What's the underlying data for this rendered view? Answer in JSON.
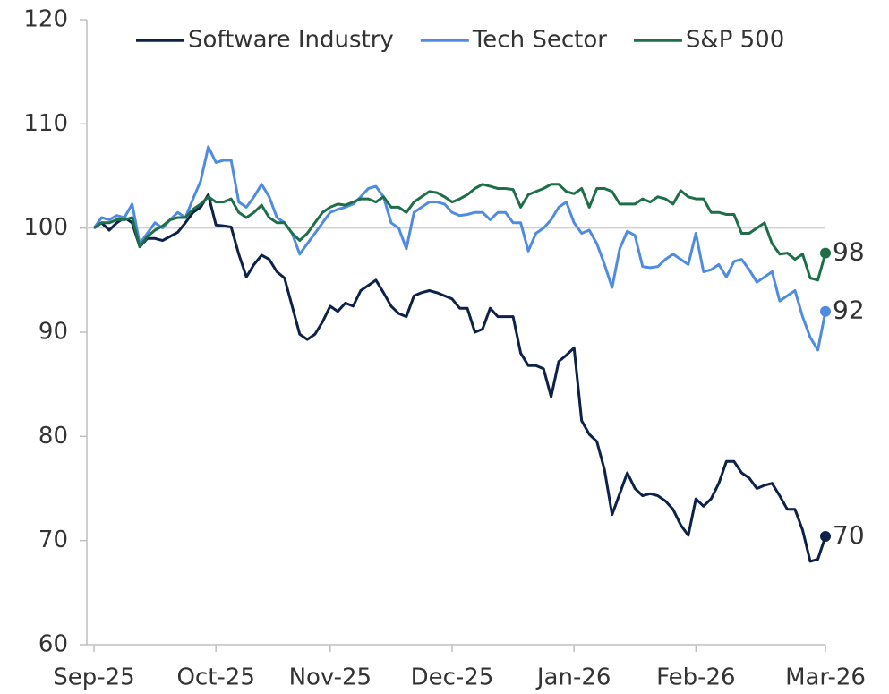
{
  "chart_data": {
    "type": "line",
    "categories": [
      "Sep-25",
      null,
      null,
      null,
      null,
      null,
      null,
      null,
      null,
      null,
      null,
      null,
      null,
      null,
      null,
      null,
      "Oct-25",
      null,
      null,
      null,
      null,
      null,
      null,
      null,
      null,
      null,
      null,
      null,
      null,
      null,
      null,
      "Nov-25",
      null,
      null,
      null,
      null,
      null,
      null,
      null,
      null,
      null,
      null,
      null,
      null,
      null,
      null,
      null,
      "Dec-25",
      null,
      null,
      null,
      null,
      null,
      null,
      null,
      null,
      null,
      null,
      null,
      null,
      null,
      null,
      null,
      "Jan-26",
      null,
      null,
      null,
      null,
      null,
      null,
      null,
      null,
      null,
      null,
      null,
      null,
      null,
      null,
      null,
      "Feb-26",
      null,
      null,
      null,
      null,
      null,
      null,
      null,
      null,
      null,
      null,
      null,
      null,
      null,
      null,
      null,
      null,
      "Mar-26"
    ],
    "series": [
      {
        "name": "Software Industry",
        "color": "#0d2149",
        "values": [
          100,
          100.5,
          99.8,
          100.5,
          101,
          100.5,
          98.2,
          99,
          99,
          98.8,
          99.2,
          99.6,
          100.5,
          101.5,
          102,
          103.2,
          100.3,
          100.2,
          100.1,
          97.5,
          95.3,
          96.5,
          97.4,
          97,
          95.8,
          95.2,
          92.5,
          89.8,
          89.3,
          89.8,
          91,
          92.5,
          92,
          92.8,
          92.5,
          94,
          94.5,
          95,
          93.8,
          92.5,
          91.8,
          91.5,
          93.5,
          93.8,
          94,
          93.8,
          93.5,
          93.2,
          92.3,
          92.3,
          90,
          90.3,
          92.3,
          91.5,
          91.5,
          91.5,
          88,
          86.8,
          86.8,
          86.5,
          83.8,
          87.2,
          87.8,
          88.5,
          81.5,
          80.2,
          79.5,
          76.8,
          72.5,
          74.5,
          76.5,
          75,
          74.3,
          74.5,
          74.3,
          73.8,
          73,
          71.5,
          70.5,
          74,
          73.3,
          74,
          75.5,
          77.6,
          77.6,
          76.5,
          76,
          75,
          75.3,
          75.5,
          74.3,
          73,
          73,
          71,
          68,
          68.2,
          70.4
        ],
        "value_labels": [
          null,
          null,
          null,
          null,
          null,
          null,
          null,
          null,
          null,
          null,
          null,
          null,
          null,
          null,
          null,
          null,
          null,
          null,
          null,
          null,
          null,
          null,
          null,
          null,
          null,
          null,
          null,
          null,
          null,
          null,
          null,
          null,
          null,
          null,
          null,
          null,
          null,
          null,
          null,
          null,
          null,
          null,
          null,
          null,
          null,
          null,
          null,
          null,
          null,
          null,
          null,
          null,
          null,
          null,
          null,
          null,
          null,
          null,
          null,
          null,
          null,
          null,
          null,
          null,
          null,
          null,
          null,
          null,
          null,
          null,
          null,
          null,
          null,
          null,
          null,
          null,
          null,
          null,
          null,
          null,
          null,
          null,
          null,
          null,
          null,
          null,
          null,
          null,
          null,
          null,
          null,
          null,
          null,
          null,
          null,
          null,
          "70"
        ]
      },
      {
        "name": "Tech Sector",
        "color": "#4f8be0",
        "values": [
          100,
          101,
          100.8,
          101.2,
          101,
          102.3,
          98.5,
          99.5,
          100.5,
          100,
          100.8,
          101.5,
          101,
          102.8,
          104.5,
          107.8,
          106.3,
          106.5,
          106.5,
          102.5,
          102,
          103,
          104.2,
          103,
          101,
          100.5,
          99.5,
          97.5,
          98.5,
          99.5,
          100.5,
          101.5,
          101.8,
          102,
          102.3,
          103,
          103.8,
          104,
          103,
          100.5,
          100,
          98,
          101.5,
          102,
          102.5,
          102.5,
          102.3,
          101.5,
          101.2,
          101.3,
          101.5,
          101.5,
          100.8,
          101.5,
          101.5,
          100.5,
          100.5,
          97.8,
          99.5,
          100,
          100.8,
          102,
          102.5,
          100.5,
          99.5,
          99.8,
          98.5,
          96.5,
          94.3,
          98,
          99.7,
          99.3,
          96.3,
          96.2,
          96.3,
          97,
          97.5,
          97,
          96.5,
          99.5,
          95.8,
          96,
          96.5,
          95.3,
          96.8,
          97,
          96,
          94.8,
          95.3,
          95.8,
          93,
          93.5,
          94,
          91.5,
          89.5,
          88.3,
          92
        ],
        "value_labels": [
          null,
          null,
          null,
          null,
          null,
          null,
          null,
          null,
          null,
          null,
          null,
          null,
          null,
          null,
          null,
          null,
          null,
          null,
          null,
          null,
          null,
          null,
          null,
          null,
          null,
          null,
          null,
          null,
          null,
          null,
          null,
          null,
          null,
          null,
          null,
          null,
          null,
          null,
          null,
          null,
          null,
          null,
          null,
          null,
          null,
          null,
          null,
          null,
          null,
          null,
          null,
          null,
          null,
          null,
          null,
          null,
          null,
          null,
          null,
          null,
          null,
          null,
          null,
          null,
          null,
          null,
          null,
          null,
          null,
          null,
          null,
          null,
          null,
          null,
          null,
          null,
          null,
          null,
          null,
          null,
          null,
          null,
          null,
          null,
          null,
          null,
          null,
          null,
          null,
          null,
          null,
          null,
          null,
          null,
          null,
          null,
          "92"
        ]
      },
      {
        "name": "S&P 500",
        "color": "#1e6e4a",
        "values": [
          100,
          100.5,
          100.5,
          100.8,
          100.8,
          101,
          98.2,
          99.2,
          99.8,
          100.2,
          100.8,
          101,
          101,
          101.8,
          102.3,
          103,
          102.5,
          102.5,
          102.8,
          101.5,
          101,
          101.5,
          102.2,
          101,
          100.5,
          100.5,
          99.5,
          98.8,
          99.5,
          100.5,
          101.5,
          102,
          102.3,
          102.2,
          102.5,
          102.8,
          102.8,
          102.5,
          103,
          102,
          102,
          101.5,
          102.5,
          103,
          103.5,
          103.4,
          103,
          102.5,
          102.8,
          103.2,
          103.8,
          104.2,
          104,
          103.8,
          103.8,
          103.7,
          102,
          103.2,
          103.5,
          103.8,
          104.2,
          104.2,
          103.5,
          103.3,
          103.8,
          102,
          103.8,
          103.8,
          103.5,
          102.3,
          102.3,
          102.3,
          102.8,
          102.5,
          103,
          102.8,
          102.3,
          103.6,
          103,
          102.8,
          102.8,
          101.5,
          101.5,
          101.3,
          101.3,
          99.5,
          99.5,
          100,
          100.5,
          98.5,
          97.5,
          97.6,
          97,
          97.5,
          95.2,
          95,
          97.6
        ],
        "value_labels": [
          null,
          null,
          null,
          null,
          null,
          null,
          null,
          null,
          null,
          null,
          null,
          null,
          null,
          null,
          null,
          null,
          null,
          null,
          null,
          null,
          null,
          null,
          null,
          null,
          null,
          null,
          null,
          null,
          null,
          null,
          null,
          null,
          null,
          null,
          null,
          null,
          null,
          null,
          null,
          null,
          null,
          null,
          null,
          null,
          null,
          null,
          null,
          null,
          null,
          null,
          null,
          null,
          null,
          null,
          null,
          null,
          null,
          null,
          null,
          null,
          null,
          null,
          null,
          null,
          null,
          null,
          null,
          null,
          null,
          null,
          null,
          null,
          null,
          null,
          null,
          null,
          null,
          null,
          null,
          null,
          null,
          null,
          null,
          null,
          null,
          null,
          null,
          null,
          null,
          null,
          null,
          null,
          null,
          null,
          null,
          null,
          "98"
        ]
      }
    ],
    "ylim": [
      60,
      120
    ],
    "yticks": [
      60,
      70,
      80,
      90,
      100,
      110,
      120
    ],
    "baseline": 100,
    "legend": "top"
  }
}
